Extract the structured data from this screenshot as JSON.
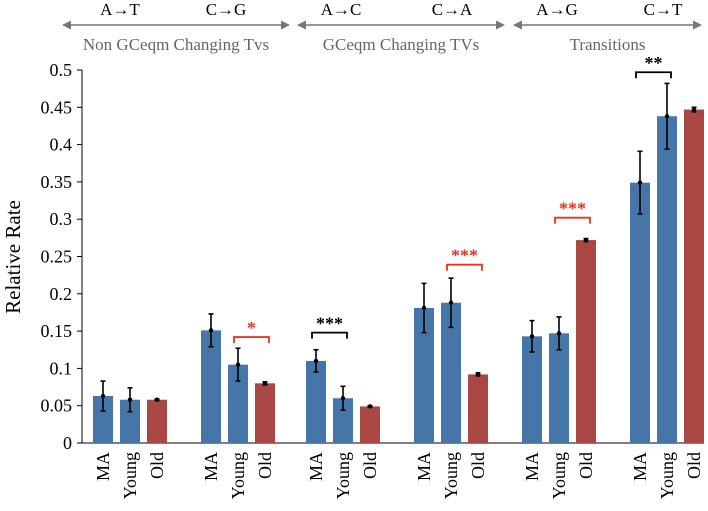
{
  "chart_data": {
    "type": "bar",
    "ylabel": "Relative Rate",
    "ylim": [
      0,
      0.5
    ],
    "yticks": [
      "0",
      "0.05",
      "0.1",
      "0.15",
      "0.2",
      "0.25",
      "0.3",
      "0.35",
      "0.4",
      "0.45",
      "0.5"
    ],
    "colors": {
      "MA": "#4675a8",
      "Young": "#4675a8",
      "Old": "#a84743",
      "sig_black": "#000000",
      "sig_red": "#e8351f"
    },
    "category_groups": [
      {
        "label": "Non GCeqm Changing Tvs",
        "mutations": [
          "A→T",
          "C→G"
        ]
      },
      {
        "label": "GCeqm Changing TVs",
        "mutations": [
          "A→C",
          "C→A"
        ]
      },
      {
        "label": "Transitions",
        "mutations": [
          "A→G",
          "C→T"
        ]
      }
    ],
    "groups": [
      {
        "mutation": "A→T",
        "bars": [
          {
            "label": "MA",
            "value": 0.063,
            "err": 0.02
          },
          {
            "label": "Young",
            "value": 0.058,
            "err": 0.016
          },
          {
            "label": "Old",
            "value": 0.058,
            "err": 0.001
          }
        ]
      },
      {
        "mutation": "C→G",
        "bars": [
          {
            "label": "MA",
            "value": 0.151,
            "err": 0.022
          },
          {
            "label": "Young",
            "value": 0.105,
            "err": 0.022
          },
          {
            "label": "Old",
            "value": 0.08,
            "err": 0.002
          }
        ],
        "sig": {
          "text": "*",
          "color": "red",
          "from": 1,
          "to": 2,
          "y": 0.142
        }
      },
      {
        "mutation": "A→C",
        "bars": [
          {
            "label": "MA",
            "value": 0.11,
            "err": 0.015
          },
          {
            "label": "Young",
            "value": 0.06,
            "err": 0.016
          },
          {
            "label": "Old",
            "value": 0.049,
            "err": 0.001
          }
        ],
        "sig": {
          "text": "***",
          "color": "black",
          "from": 0,
          "to": 1,
          "y": 0.148
        }
      },
      {
        "mutation": "C→A",
        "bars": [
          {
            "label": "MA",
            "value": 0.181,
            "err": 0.033
          },
          {
            "label": "Young",
            "value": 0.188,
            "err": 0.033
          },
          {
            "label": "Old",
            "value": 0.092,
            "err": 0.002
          }
        ],
        "sig": {
          "text": "***",
          "color": "red",
          "from": 1,
          "to": 2,
          "y": 0.239
        }
      },
      {
        "mutation": "A→G",
        "bars": [
          {
            "label": "MA",
            "value": 0.143,
            "err": 0.021
          },
          {
            "label": "Young",
            "value": 0.147,
            "err": 0.022
          },
          {
            "label": "Old",
            "value": 0.272,
            "err": 0.002
          }
        ],
        "sig": {
          "text": "***",
          "color": "red",
          "from": 1,
          "to": 2,
          "y": 0.302
        }
      },
      {
        "mutation": "C→T",
        "bars": [
          {
            "label": "MA",
            "value": 0.349,
            "err": 0.042
          },
          {
            "label": "Young",
            "value": 0.438,
            "err": 0.044
          },
          {
            "label": "Old",
            "value": 0.447,
            "err": 0.003
          }
        ],
        "sig": {
          "text": "**",
          "color": "black",
          "from": 0,
          "to": 1,
          "y": 0.497
        }
      }
    ]
  }
}
